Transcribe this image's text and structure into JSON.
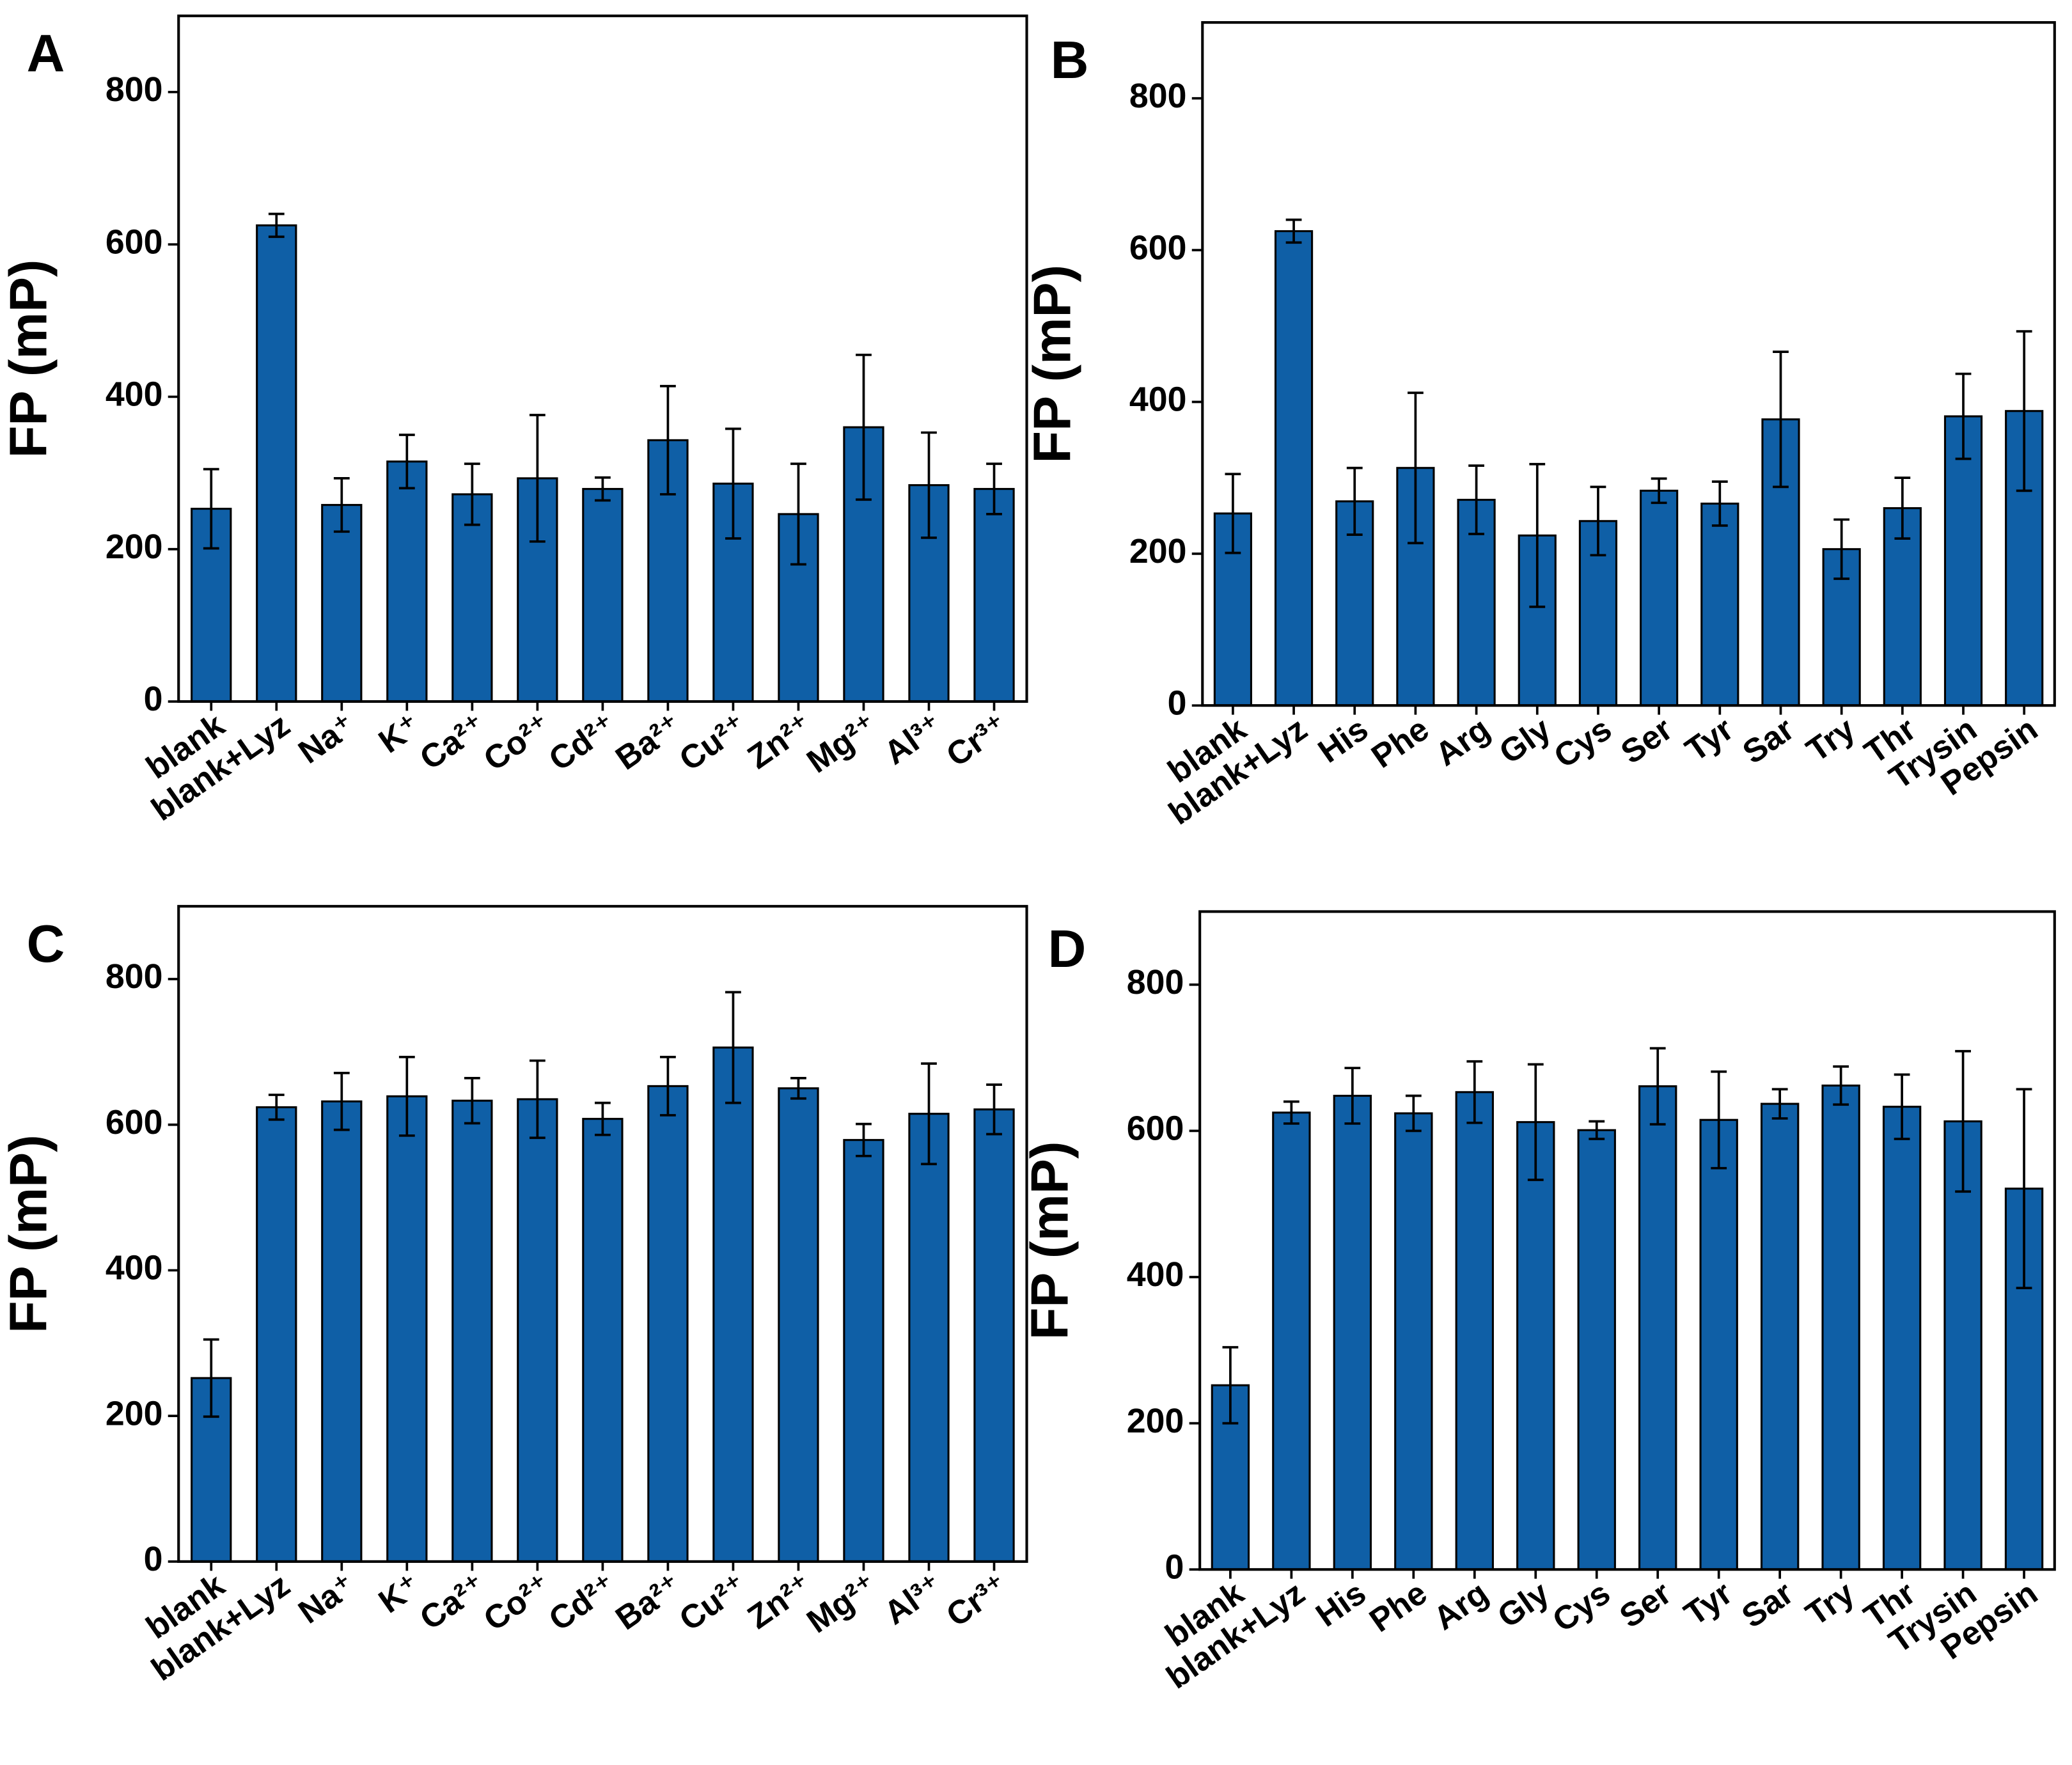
{
  "chart_data": [
    {
      "type": "bar",
      "title": "A",
      "y_label": "FP (mP)",
      "color": "#0f5fa6",
      "categories": [
        "blank",
        "blank+Lyz",
        "Na⁺",
        "K⁺",
        "Ca²⁺",
        "Co²⁺",
        "Cd²⁺",
        "Ba²⁺",
        "Cu²⁺",
        "Zn²⁺",
        "Mg²⁺",
        "Al³⁺",
        "Cr³⁺"
      ],
      "values": [
        253,
        625,
        258,
        315,
        272,
        293,
        279,
        343,
        286,
        246,
        360,
        284,
        279
      ],
      "errors": [
        52,
        15,
        35,
        35,
        40,
        83,
        15,
        71,
        72,
        66,
        95,
        69,
        33
      ],
      "ylim": [
        0,
        900
      ],
      "yticks": [
        0,
        200,
        400,
        600,
        800
      ]
    },
    {
      "type": "bar",
      "title": "B",
      "y_label": "FP (mP)",
      "color": "#0f5fa6",
      "categories": [
        "blank",
        "blank+Lyz",
        "His",
        "Phe",
        "Arg",
        "Gly",
        "Cys",
        "Ser",
        "Tyr",
        "Sar",
        "Try",
        "Thr",
        "Trysin",
        "Pepsin"
      ],
      "values": [
        253,
        625,
        269,
        313,
        271,
        224,
        243,
        283,
        266,
        377,
        206,
        260,
        381,
        388
      ],
      "errors": [
        52,
        15,
        44,
        99,
        45,
        94,
        45,
        16,
        29,
        89,
        39,
        40,
        56,
        105
      ],
      "ylim": [
        0,
        900
      ],
      "yticks": [
        0,
        200,
        400,
        600,
        800
      ]
    },
    {
      "type": "bar",
      "title": "C",
      "y_label": "FP (mP)",
      "color": "#0f5fa6",
      "categories": [
        "blank",
        "blank+Lyz",
        "Na⁺",
        "K⁺",
        "Ca²⁺",
        "Co²⁺",
        "Cd²⁺",
        "Ba²⁺",
        "Cu²⁺",
        "Zn²⁺",
        "Mg²⁺",
        "Al³⁺",
        "Cr³⁺"
      ],
      "values": [
        252,
        624,
        632,
        639,
        633,
        635,
        608,
        653,
        706,
        650,
        579,
        615,
        621
      ],
      "errors": [
        53,
        17,
        39,
        54,
        31,
        53,
        22,
        40,
        76,
        14,
        22,
        69,
        34
      ],
      "ylim": [
        0,
        900
      ],
      "yticks": [
        0,
        200,
        400,
        600,
        800
      ]
    },
    {
      "type": "bar",
      "title": "D",
      "y_label": "FP (mP)",
      "color": "#0f5fa6",
      "categories": [
        "blank",
        "blank+Lyz",
        "His",
        "Phe",
        "Arg",
        "Gly",
        "Cys",
        "Ser",
        "Tyr",
        "Sar",
        "Try",
        "Thr",
        "Trysin",
        "Pepsin"
      ],
      "values": [
        252,
        625,
        648,
        624,
        653,
        612,
        601,
        661,
        615,
        637,
        662,
        633,
        613,
        521
      ],
      "errors": [
        52,
        15,
        38,
        24,
        42,
        79,
        12,
        52,
        66,
        20,
        26,
        44,
        96,
        136
      ],
      "ylim": [
        0,
        900
      ],
      "yticks": [
        0,
        200,
        400,
        600,
        800
      ]
    }
  ]
}
